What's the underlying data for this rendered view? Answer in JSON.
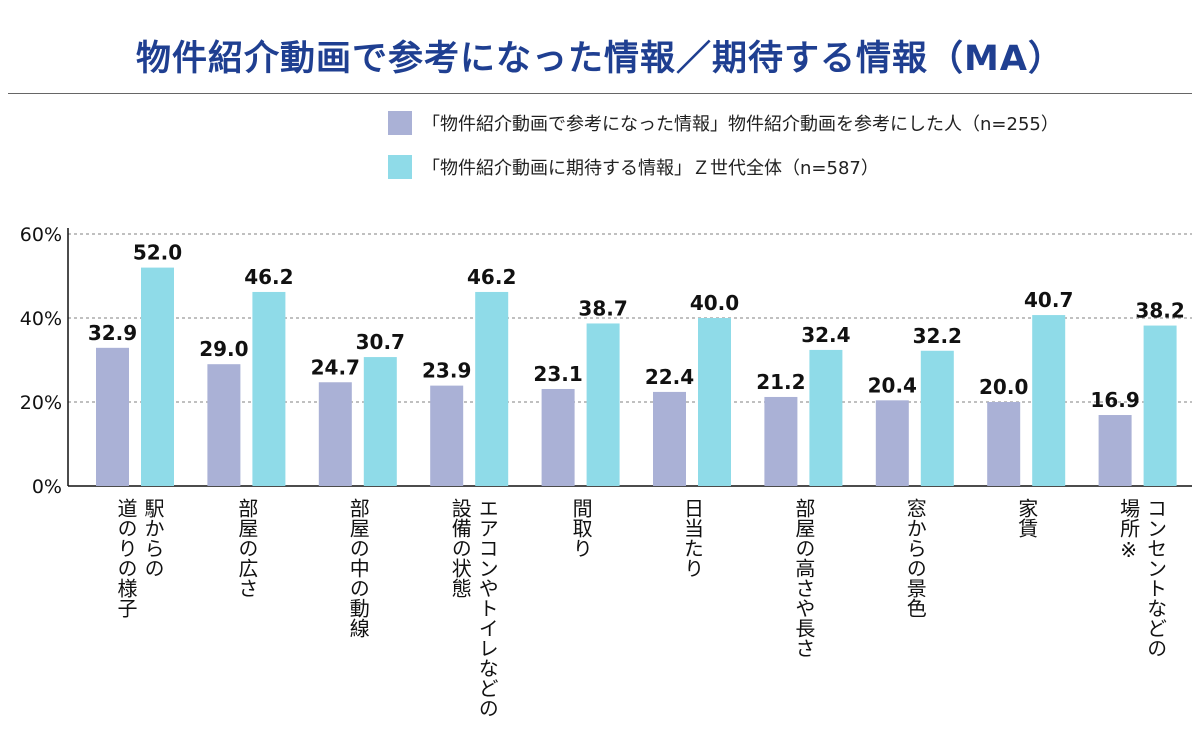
{
  "title": "物件紹介動画で参考になった情報／期待する情報（MA）",
  "colors": {
    "series1": "#aab1d6",
    "series2": "#8fdbe8",
    "title": "#1f3f91",
    "grid": "#9a9a9a"
  },
  "chart_data": {
    "type": "bar",
    "title": "物件紹介動画で参考になった情報／期待する情報（MA）",
    "xlabel": "",
    "ylabel": "",
    "ylim": [
      0,
      60
    ],
    "yticks": [
      0,
      20,
      40,
      60
    ],
    "ytick_labels": [
      "0%",
      "20%",
      "40%",
      "60%"
    ],
    "grid": true,
    "legend_position": "top-right",
    "categories": [
      "駅からの\n道のりの様子",
      "部屋の広さ",
      "部屋の中の動線",
      "エアコンやトイレなどの\n設備の状態",
      "間取り",
      "日当たり",
      "部屋の高さや長さ",
      "窓からの景色",
      "家賃",
      "コンセントなどの\n場所※"
    ],
    "series": [
      {
        "name": "「物件紹介動画で参考になった情報」物件紹介動画を参考にした人（n=255）",
        "values": [
          32.9,
          29.0,
          24.7,
          23.9,
          23.1,
          22.4,
          21.2,
          20.4,
          20.0,
          16.9
        ],
        "labels": [
          "32.9",
          "29.0",
          "24.7",
          "23.9",
          "23.1",
          "22.4",
          "21.2",
          "20.4",
          "20.0",
          "16.9"
        ]
      },
      {
        "name": "「物件紹介動画に期待する情報」Ｚ世代全体（n=587）",
        "values": [
          52.0,
          46.2,
          30.7,
          46.2,
          38.7,
          40.0,
          32.4,
          32.2,
          40.7,
          38.2
        ],
        "labels": [
          "52.0",
          "46.2",
          "30.7",
          "46.2",
          "38.7",
          "40.0",
          "32.4",
          "32.2",
          "40.7",
          "38.2"
        ]
      }
    ]
  }
}
